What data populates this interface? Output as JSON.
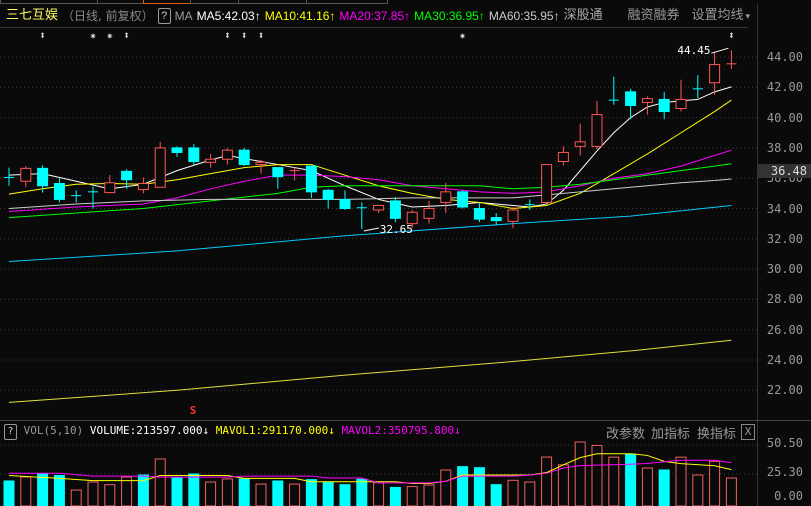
{
  "header": {
    "stock_name": "三七互娱",
    "period": "（日线, 前复权）",
    "help_label": "?",
    "ma_label": "MA",
    "ma5": {
      "label": "MA5:42.03",
      "arrow": "↑",
      "color": "#ffffff"
    },
    "ma10": {
      "label": "MA10:41.16",
      "arrow": "↑",
      "color": "#ffff00"
    },
    "ma20": {
      "label": "MA20:37.85",
      "arrow": "↑",
      "color": "#ff00ff"
    },
    "ma30": {
      "label": "MA30:36.95",
      "arrow": "↑",
      "color": "#00ff00"
    },
    "ma60": {
      "label": "MA60:35.95",
      "arrow": "↑",
      "color": "#cccccc"
    },
    "shenzhen_connect": "深股通",
    "margin_trading": "融资融券",
    "set_ma": "设置均线",
    "set_ma_caret": "▾"
  },
  "markers": [
    {
      "index": 2,
      "glyph": "⬍"
    },
    {
      "index": 5,
      "glyph": "✷"
    },
    {
      "index": 6,
      "glyph": "✷"
    },
    {
      "index": 7,
      "glyph": "⬍"
    },
    {
      "index": 13,
      "glyph": "⬍"
    },
    {
      "index": 14,
      "glyph": "⬍"
    },
    {
      "index": 15,
      "glyph": "⬍"
    },
    {
      "index": 27,
      "glyph": "✷"
    },
    {
      "index": 43,
      "glyph": "⬍"
    }
  ],
  "sell_signal": {
    "index": 11,
    "label": "S"
  },
  "price_axis": {
    "labels": [
      "44.00",
      "42.00",
      "40.00",
      "38.00",
      "36.00",
      "34.00",
      "32.00",
      "30.00",
      "28.00",
      "26.00",
      "24.00",
      "22.00"
    ],
    "values": [
      44,
      42,
      40,
      38,
      36,
      34,
      32,
      30,
      28,
      26,
      24,
      22
    ],
    "current": "36.48",
    "current_value": 36.48
  },
  "annotations": {
    "high_label": "44.45",
    "low_label": "32.65"
  },
  "colors": {
    "up": "#ff5555",
    "down": "#00ffff",
    "ma_long1": "#00c8ff",
    "ma_long2": "#e0e040",
    "grid": "#3a3a3a"
  },
  "chart_data": {
    "type": "candlestick",
    "candles": [
      [
        36.05,
        36.7,
        35.5,
        36.0
      ],
      [
        35.8,
        36.8,
        35.4,
        36.65
      ],
      [
        36.65,
        36.85,
        35.05,
        35.5
      ],
      [
        35.65,
        36.0,
        34.4,
        34.6
      ],
      [
        34.85,
        35.2,
        34.4,
        34.8
      ],
      [
        35.1,
        35.45,
        34.0,
        35.05
      ],
      [
        35.05,
        36.2,
        35.0,
        35.7
      ],
      [
        36.45,
        36.6,
        35.3,
        35.9
      ],
      [
        35.25,
        36.05,
        35.0,
        35.65
      ],
      [
        35.4,
        38.4,
        35.4,
        38.0
      ],
      [
        38.0,
        38.1,
        37.4,
        37.7
      ],
      [
        38.0,
        38.25,
        36.8,
        37.1
      ],
      [
        37.05,
        37.6,
        36.7,
        37.25
      ],
      [
        37.25,
        38.0,
        36.9,
        37.85
      ],
      [
        37.85,
        38.0,
        36.8,
        36.9
      ],
      [
        36.9,
        37.2,
        36.3,
        37.05
      ],
      [
        36.7,
        36.7,
        35.3,
        36.1
      ],
      [
        36.4,
        36.7,
        35.85,
        36.5
      ],
      [
        36.8,
        36.8,
        34.7,
        35.1
      ],
      [
        35.2,
        35.3,
        34.0,
        34.6
      ],
      [
        34.6,
        35.2,
        33.9,
        34.0
      ],
      [
        34.05,
        34.4,
        32.65,
        34.0
      ],
      [
        33.9,
        34.25,
        33.7,
        34.2
      ],
      [
        34.5,
        34.75,
        33.1,
        33.35
      ],
      [
        33.0,
        33.9,
        32.7,
        33.75
      ],
      [
        33.35,
        34.5,
        33.0,
        34.0
      ],
      [
        34.4,
        35.7,
        33.7,
        35.1
      ],
      [
        35.1,
        35.2,
        34.0,
        34.1
      ],
      [
        34.0,
        34.4,
        33.1,
        33.3
      ],
      [
        33.4,
        33.7,
        32.9,
        33.2
      ],
      [
        33.15,
        34.1,
        32.7,
        33.9
      ],
      [
        34.25,
        34.6,
        33.9,
        34.2
      ],
      [
        34.4,
        36.9,
        34.4,
        36.9
      ],
      [
        37.1,
        38.1,
        36.85,
        37.7
      ],
      [
        38.1,
        39.6,
        37.5,
        38.4
      ],
      [
        38.1,
        41.1,
        37.9,
        40.2
      ],
      [
        41.15,
        42.7,
        40.85,
        41.1
      ],
      [
        41.7,
        41.9,
        39.9,
        40.8
      ],
      [
        41.0,
        41.4,
        40.2,
        41.25
      ],
      [
        41.2,
        41.7,
        39.9,
        40.4
      ],
      [
        40.6,
        42.5,
        40.4,
        41.2
      ],
      [
        41.9,
        42.8,
        41.3,
        41.85
      ],
      [
        42.3,
        44.35,
        41.5,
        43.5
      ],
      [
        43.5,
        44.45,
        43.2,
        43.55
      ]
    ],
    "ma_series": [
      {
        "name": "MA5",
        "color": "#ffffff",
        "points": [
          [
            0,
            36.2
          ],
          [
            2,
            36.3
          ],
          [
            4,
            35.8
          ],
          [
            6,
            35.3
          ],
          [
            8,
            35.6
          ],
          [
            10,
            36.5
          ],
          [
            12,
            37.2
          ],
          [
            13,
            37.5
          ],
          [
            14,
            37.3
          ],
          [
            16,
            36.9
          ],
          [
            18,
            36.5
          ],
          [
            20,
            35.5
          ],
          [
            22,
            34.6
          ],
          [
            24,
            34.1
          ],
          [
            26,
            34.2
          ],
          [
            28,
            34.4
          ],
          [
            30,
            34.2
          ],
          [
            31,
            34.1
          ],
          [
            32,
            34.3
          ],
          [
            33,
            35.2
          ],
          [
            34,
            36.5
          ],
          [
            35,
            37.8
          ],
          [
            36,
            39.0
          ],
          [
            37,
            40.0
          ],
          [
            38,
            40.7
          ],
          [
            39,
            41.0
          ],
          [
            40,
            41.1
          ],
          [
            41,
            41.2
          ],
          [
            42,
            41.7
          ],
          [
            43,
            42.03
          ]
        ]
      },
      {
        "name": "MA10",
        "color": "#ffff00",
        "points": [
          [
            0,
            34.95
          ],
          [
            2,
            35.3
          ],
          [
            4,
            35.6
          ],
          [
            6,
            35.65
          ],
          [
            8,
            35.6
          ],
          [
            10,
            35.9
          ],
          [
            12,
            36.3
          ],
          [
            14,
            36.7
          ],
          [
            16,
            36.9
          ],
          [
            18,
            36.9
          ],
          [
            20,
            36.2
          ],
          [
            22,
            35.5
          ],
          [
            24,
            35.0
          ],
          [
            26,
            34.6
          ],
          [
            28,
            34.4
          ],
          [
            30,
            34.0
          ],
          [
            32,
            34.2
          ],
          [
            34,
            35.0
          ],
          [
            36,
            36.3
          ],
          [
            38,
            37.6
          ],
          [
            40,
            39.0
          ],
          [
            42,
            40.4
          ],
          [
            43,
            41.16
          ]
        ]
      },
      {
        "name": "MA20",
        "color": "#ff00ff",
        "points": [
          [
            0,
            33.8
          ],
          [
            4,
            34.1
          ],
          [
            8,
            34.3
          ],
          [
            10,
            34.7
          ],
          [
            12,
            35.3
          ],
          [
            14,
            35.8
          ],
          [
            16,
            36.2
          ],
          [
            18,
            36.2
          ],
          [
            20,
            36.1
          ],
          [
            22,
            35.9
          ],
          [
            24,
            35.5
          ],
          [
            26,
            35.3
          ],
          [
            28,
            35.1
          ],
          [
            30,
            35.0
          ],
          [
            32,
            35.1
          ],
          [
            34,
            35.5
          ],
          [
            36,
            36.0
          ],
          [
            38,
            36.3
          ],
          [
            40,
            36.8
          ],
          [
            42,
            37.5
          ],
          [
            43,
            37.85
          ]
        ]
      },
      {
        "name": "MA30",
        "color": "#00ff00",
        "points": [
          [
            0,
            33.4
          ],
          [
            4,
            33.7
          ],
          [
            8,
            34.0
          ],
          [
            12,
            34.5
          ],
          [
            16,
            35.0
          ],
          [
            18,
            35.4
          ],
          [
            20,
            35.5
          ],
          [
            24,
            35.5
          ],
          [
            28,
            35.5
          ],
          [
            30,
            35.3
          ],
          [
            32,
            35.4
          ],
          [
            34,
            35.6
          ],
          [
            36,
            35.9
          ],
          [
            38,
            36.2
          ],
          [
            40,
            36.5
          ],
          [
            42,
            36.8
          ],
          [
            43,
            36.95
          ]
        ]
      },
      {
        "name": "MA60",
        "color": "#cccccc",
        "points": [
          [
            0,
            34.0
          ],
          [
            4,
            34.3
          ],
          [
            8,
            34.5
          ],
          [
            12,
            34.6
          ],
          [
            16,
            34.6
          ],
          [
            20,
            34.6
          ],
          [
            24,
            34.7
          ],
          [
            28,
            34.7
          ],
          [
            30,
            34.7
          ],
          [
            32,
            34.9
          ],
          [
            34,
            35.1
          ],
          [
            36,
            35.3
          ],
          [
            38,
            35.5
          ],
          [
            40,
            35.7
          ],
          [
            42,
            35.85
          ],
          [
            43,
            35.95
          ]
        ]
      },
      {
        "color": "#00c8ff",
        "points": [
          [
            0,
            30.5
          ],
          [
            10,
            31.2
          ],
          [
            20,
            32.2
          ],
          [
            30,
            33.0
          ],
          [
            37,
            33.5
          ],
          [
            43,
            34.2
          ]
        ]
      },
      {
        "color": "#e0e040",
        "points": [
          [
            0,
            21.2
          ],
          [
            10,
            22.0
          ],
          [
            20,
            23.0
          ],
          [
            30,
            23.9
          ],
          [
            37,
            24.6
          ],
          [
            43,
            25.3
          ]
        ]
      }
    ],
    "volume": {
      "values": [
        19.2,
        22.7,
        25.3,
        24,
        11.3,
        18.3,
        16,
        22.7,
        24.4,
        38.4,
        21.8,
        25.3,
        18.3,
        21,
        21,
        16.5,
        19.2,
        16.5,
        20.4,
        18.3,
        16,
        20.7,
        17.7,
        13.6,
        14.3,
        15.7,
        28.8,
        31.7,
        30.8,
        16,
        19.8,
        18.3,
        40.1,
        33.3,
        53.2,
        50.2,
        40,
        42.6,
        30.5,
        28.8,
        40,
        24.4,
        36.3,
        21.8
      ],
      "dirs": [
        "d",
        "u",
        "d",
        "d",
        "u",
        "u",
        "u",
        "u",
        "d",
        "u",
        "d",
        "d",
        "u",
        "u",
        "d",
        "u",
        "d",
        "u",
        "d",
        "d",
        "d",
        "d",
        "u",
        "d",
        "u",
        "u",
        "u",
        "d",
        "d",
        "d",
        "u",
        "u",
        "u",
        "u",
        "u",
        "u",
        "u",
        "d",
        "u",
        "d",
        "u",
        "u",
        "u",
        "u"
      ],
      "mavol1": [
        [
          0,
          24
        ],
        [
          3,
          21.5
        ],
        [
          5,
          19.5
        ],
        [
          8,
          19.5
        ],
        [
          9,
          24
        ],
        [
          13,
          24
        ],
        [
          14,
          21.5
        ],
        [
          17,
          21.5
        ],
        [
          18,
          18.5
        ],
        [
          23,
          18.5
        ],
        [
          24,
          17
        ],
        [
          25,
          17
        ],
        [
          26,
          19
        ],
        [
          27,
          24.4
        ],
        [
          31,
          24.4
        ],
        [
          32,
          26.5
        ],
        [
          33,
          33.3
        ],
        [
          34,
          39.6
        ],
        [
          35,
          43
        ],
        [
          37,
          43
        ],
        [
          38,
          41.5
        ],
        [
          39,
          36.3
        ],
        [
          40,
          34.4
        ],
        [
          42,
          32.5
        ],
        [
          43,
          29.1
        ]
      ],
      "mavol2": [
        [
          0,
          25.9
        ],
        [
          3,
          25.9
        ],
        [
          5,
          23.5
        ],
        [
          8,
          23.5
        ],
        [
          9,
          22.6
        ],
        [
          13,
          22.6
        ],
        [
          14,
          23.5
        ],
        [
          18,
          23.5
        ],
        [
          19,
          21.8
        ],
        [
          21,
          21.8
        ],
        [
          22,
          17.6
        ],
        [
          25,
          17.6
        ],
        [
          26,
          19
        ],
        [
          27,
          23.5
        ],
        [
          30,
          23.5
        ],
        [
          31,
          24.3
        ],
        [
          32,
          25.9
        ],
        [
          33,
          30.5
        ],
        [
          34,
          32.6
        ],
        [
          37,
          33.8
        ],
        [
          38,
          34.5
        ],
        [
          39,
          36
        ],
        [
          40,
          37.3
        ],
        [
          42,
          37.3
        ],
        [
          43,
          35.1
        ]
      ]
    }
  },
  "volume_panel": {
    "help_label": "?",
    "title": "VOL(5,10)",
    "volume": "VOLUME:213597.000",
    "volume_arrow": "↓",
    "mavol1": "MAVOL1:291170.000",
    "mavol1_arrow": "↓",
    "mavol2": "MAVOL2:350795.800",
    "mavol2_arrow": "↓",
    "edit_params": "改参数",
    "add_indicator": "加指标",
    "switch_indicator": "换指标",
    "close_label": "X",
    "axis_labels": [
      "50.50",
      "25.30",
      "0.00"
    ],
    "axis_values": [
      50.5,
      25.3,
      0
    ]
  }
}
